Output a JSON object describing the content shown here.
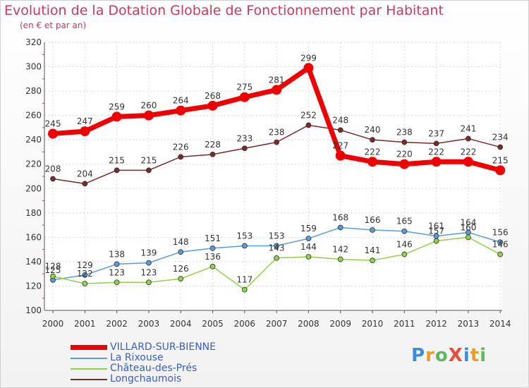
{
  "header": {
    "title": "Evolution de la Dotation Globale de Fonctionnement par Habitant",
    "subtitle": "(en € et par an)"
  },
  "logo": {
    "text": "ProXiti",
    "letters": [
      {
        "ch": "P",
        "color": "#3a8fd8"
      },
      {
        "ch": "r",
        "color": "#e8a020"
      },
      {
        "ch": "o",
        "color": "#5cb85c"
      },
      {
        "ch": "X",
        "color": "#e84c3d"
      },
      {
        "ch": "i",
        "color": "#3a8fd8"
      },
      {
        "ch": "t",
        "color": "#e8a020"
      },
      {
        "ch": "i",
        "color": "#5cb85c"
      }
    ]
  },
  "chart_data": {
    "type": "line",
    "categories": [
      "2000",
      "2001",
      "2002",
      "2003",
      "2004",
      "2005",
      "2006",
      "2007",
      "2008",
      "2009",
      "2010",
      "2011",
      "2012",
      "2013",
      "2014"
    ],
    "ylim": [
      100,
      320
    ],
    "yticks": [
      100,
      120,
      140,
      160,
      180,
      200,
      220,
      240,
      260,
      280,
      300,
      320
    ],
    "grid": true,
    "legend_position": "bottom-left",
    "series": [
      {
        "name": "VILLARD-SUR-BIENNE",
        "color": "#ee0000",
        "width": 7,
        "marker": 7,
        "values": [
          245,
          247,
          259,
          260,
          264,
          268,
          275,
          281,
          299,
          227,
          222,
          220,
          222,
          222,
          215
        ],
        "labels": [
          "245",
          "247",
          "259",
          "260",
          "264",
          "268",
          "275",
          "281",
          "299",
          "227",
          "222",
          "220",
          "222",
          "222",
          "215"
        ]
      },
      {
        "name": "La Rixouse",
        "color": "#5b9bd5",
        "width": 1.5,
        "marker": 3.5,
        "values": [
          125,
          129,
          138,
          139,
          148,
          151,
          153,
          153,
          159,
          168,
          166,
          165,
          161,
          164,
          156
        ],
        "labels": [
          "125",
          "129",
          "138",
          "139",
          "148",
          "151",
          "153",
          "153",
          "159",
          "168",
          "166",
          "165",
          "161",
          "164",
          "156"
        ]
      },
      {
        "name": "Château-des-Prés",
        "color": "#8fd14f",
        "width": 1.5,
        "marker": 3.5,
        "values": [
          128,
          122,
          123,
          123,
          126,
          136,
          117,
          143,
          144,
          142,
          141,
          146,
          157,
          160,
          146
        ],
        "labels": [
          "128",
          "122",
          "123",
          "123",
          "126",
          "136",
          "117",
          "143",
          "144",
          "142",
          "141",
          "146",
          "157",
          "160",
          "146"
        ]
      },
      {
        "name": "Longchaumois",
        "color": "#7a2a2a",
        "width": 1.5,
        "marker": 3.5,
        "values": [
          208,
          204,
          215,
          215,
          226,
          228,
          233,
          238,
          252,
          248,
          240,
          238,
          237,
          241,
          234
        ],
        "labels": [
          "208",
          "204",
          "215",
          "215",
          "226",
          "228",
          "233",
          "238",
          "252",
          "248",
          "240",
          "238",
          "237",
          "241",
          "234"
        ]
      }
    ]
  }
}
